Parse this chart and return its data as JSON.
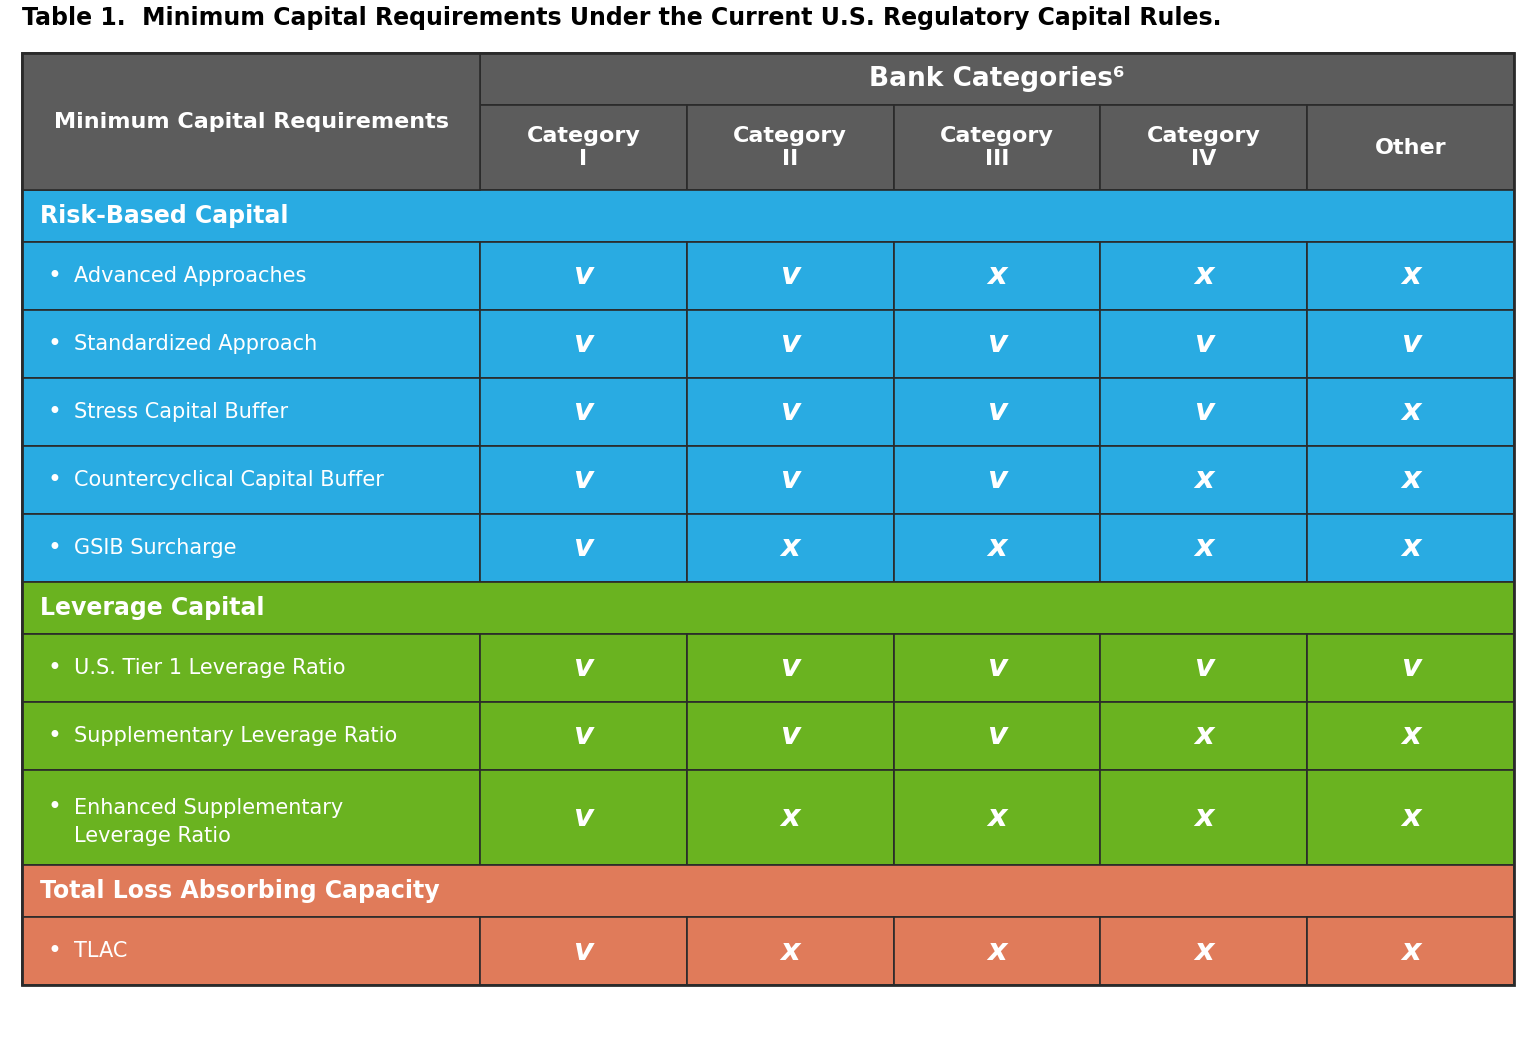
{
  "title": "Table 1.  Minimum Capital Requirements Under the Current U.S. Regulatory Capital Rules.",
  "header_col_label": "Minimum Capital Requirements",
  "bank_categories_label": "Bank Categories⁶",
  "col_headers": [
    "Category\nI",
    "Category\nII",
    "Category\nIII",
    "Category\nIV",
    "Other"
  ],
  "sections": [
    {
      "label": "Risk-Based Capital",
      "color": "#29ABE2",
      "rows": [
        {
          "label": "Advanced Approaches",
          "values": [
            "v",
            "v",
            "x",
            "x",
            "x"
          ]
        },
        {
          "label": "Standardized Approach",
          "values": [
            "v",
            "v",
            "v",
            "v",
            "v"
          ]
        },
        {
          "label": "Stress Capital Buffer",
          "values": [
            "v",
            "v",
            "v",
            "v",
            "x"
          ]
        },
        {
          "label": "Countercyclical Capital Buffer",
          "values": [
            "v",
            "v",
            "v",
            "x",
            "x"
          ]
        },
        {
          "label": "GSIB Surcharge",
          "values": [
            "v",
            "x",
            "x",
            "x",
            "x"
          ]
        }
      ]
    },
    {
      "label": "Leverage Capital",
      "color": "#6AB320",
      "rows": [
        {
          "label": "U.S. Tier 1 Leverage Ratio",
          "values": [
            "v",
            "v",
            "v",
            "v",
            "v"
          ]
        },
        {
          "label": "Supplementary Leverage Ratio",
          "values": [
            "v",
            "v",
            "v",
            "x",
            "x"
          ]
        },
        {
          "label": "Enhanced Supplementary\nLeverage Ratio",
          "values": [
            "v",
            "x",
            "x",
            "x",
            "x"
          ]
        }
      ]
    },
    {
      "label": "Total Loss Absorbing Capacity",
      "color": "#E07B5A",
      "rows": [
        {
          "label": "TLAC",
          "values": [
            "v",
            "x",
            "x",
            "x",
            "x"
          ]
        }
      ]
    }
  ],
  "header_bg": "#5C5C5C",
  "title_color": "#000000",
  "fig_width": 15.36,
  "fig_height": 10.61,
  "dpi": 100
}
